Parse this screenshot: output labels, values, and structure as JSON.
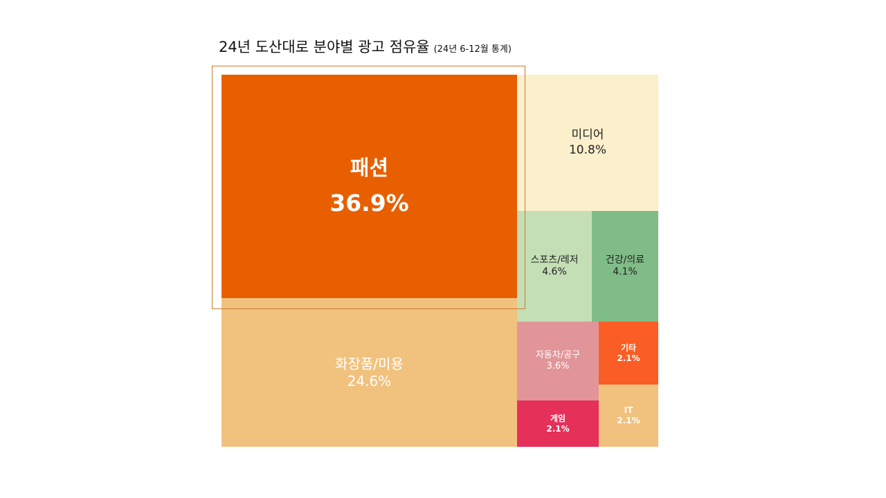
{
  "chart_data": {
    "type": "treemap",
    "title": "24년 도산대로 분야별 광고 점유율",
    "subtitle": "(24년 6-12월 통계)",
    "unit": "%",
    "items": [
      {
        "label": "패션",
        "value": 36.9,
        "display": "36.9%",
        "color": "#e85f00",
        "text_color": "#ffffff"
      },
      {
        "label": "화장품/미용",
        "value": 24.6,
        "display": "24.6%",
        "color": "#f1c27e",
        "text_color": "#ffffff"
      },
      {
        "label": "미디어",
        "value": 10.8,
        "display": "10.8%",
        "color": "#fcefcb",
        "text_color": "#222222"
      },
      {
        "label": "스포츠/레저",
        "value": 4.6,
        "display": "4.6%",
        "color": "#c4deb6",
        "text_color": "#222222"
      },
      {
        "label": "건강/의료",
        "value": 4.1,
        "display": "4.1%",
        "color": "#80bc87",
        "text_color": "#222222"
      },
      {
        "label": "자동차/공구",
        "value": 3.6,
        "display": "3.6%",
        "color": "#e29599",
        "text_color": "#ffffff"
      },
      {
        "label": "기타",
        "value": 2.1,
        "display": "2.1%",
        "color": "#fa5d25",
        "text_color": "#ffffff"
      },
      {
        "label": "게임",
        "value": 2.1,
        "display": "2.1%",
        "color": "#e5305a",
        "text_color": "#ffffff"
      },
      {
        "label": "IT",
        "value": 2.1,
        "display": "2.1%",
        "color": "#f1c27e",
        "text_color": "#ffffff"
      }
    ],
    "highlighted": "패션"
  }
}
